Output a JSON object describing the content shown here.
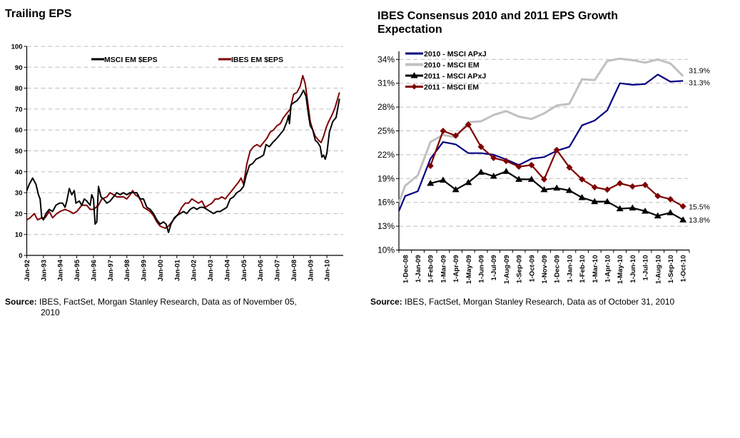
{
  "left": {
    "title": "Trailing EPS",
    "source_bold": "Source:",
    "source_text": " IBES, FactSet, Morgan Stanley Research, Data as of November 05,",
    "source_cont": "2010"
  },
  "right": {
    "title": "IBES Consensus 2010 and 2011 EPS Growth Expectation",
    "source_bold": "Source:",
    "source_text": " IBES, FactSet, Morgan Stanley Research, Data as of October 31, 2010"
  },
  "chart_data": [
    {
      "type": "line",
      "title": "Trailing EPS",
      "xlabel": "",
      "ylabel": "",
      "ylim": [
        0,
        100
      ],
      "yticks": [
        0,
        10,
        20,
        30,
        40,
        50,
        60,
        70,
        80,
        90,
        100
      ],
      "xlim": [
        1992.0,
        2010.85
      ],
      "xtick_labels": [
        "Jan-92",
        "Jan-93",
        "Jan-94",
        "Jan-95",
        "Jan-96",
        "Jan-97",
        "Jan-98",
        "Jan-99",
        "Jan-00",
        "Jan-01",
        "Jan-02",
        "Jan-03",
        "Jan-04",
        "Jan-05",
        "Jan-06",
        "Jan-07",
        "Jan-08",
        "Jan-09",
        "Jan-10"
      ],
      "xtick_values": [
        1992,
        1993,
        1994,
        1995,
        1996,
        1997,
        1998,
        1999,
        2000,
        2001,
        2002,
        2003,
        2004,
        2005,
        2006,
        2007,
        2008,
        2009,
        2010
      ],
      "grid": "horizontal dashed",
      "legend": "top",
      "series": [
        {
          "name": "MSCI EM $EPS",
          "color": "#000000",
          "points": [
            [
              1992.0,
              31
            ],
            [
              1992.15,
              34
            ],
            [
              1992.35,
              37
            ],
            [
              1992.55,
              34
            ],
            [
              1992.7,
              29
            ],
            [
              1992.8,
              27
            ],
            [
              1992.9,
              18
            ],
            [
              1993.0,
              17
            ],
            [
              1993.15,
              20
            ],
            [
              1993.35,
              22
            ],
            [
              1993.55,
              21
            ],
            [
              1993.75,
              24
            ],
            [
              1993.95,
              25
            ],
            [
              1994.15,
              25
            ],
            [
              1994.3,
              23
            ],
            [
              1994.4,
              26
            ],
            [
              1994.55,
              32
            ],
            [
              1994.7,
              29
            ],
            [
              1994.85,
              31
            ],
            [
              1994.95,
              25
            ],
            [
              1995.15,
              26
            ],
            [
              1995.3,
              24
            ],
            [
              1995.45,
              27
            ],
            [
              1995.6,
              26
            ],
            [
              1995.8,
              24
            ],
            [
              1995.9,
              29
            ],
            [
              1996.0,
              27
            ],
            [
              1996.1,
              15
            ],
            [
              1996.2,
              16
            ],
            [
              1996.3,
              33
            ],
            [
              1996.45,
              28
            ],
            [
              1996.6,
              27
            ],
            [
              1996.8,
              25
            ],
            [
              1997.0,
              26
            ],
            [
              1997.2,
              28
            ],
            [
              1997.4,
              30
            ],
            [
              1997.6,
              29
            ],
            [
              1997.8,
              30
            ],
            [
              1998.0,
              29
            ],
            [
              1998.2,
              30
            ],
            [
              1998.4,
              30
            ],
            [
              1998.6,
              30
            ],
            [
              1998.8,
              27
            ],
            [
              1999.0,
              27
            ],
            [
              1999.2,
              23
            ],
            [
              1999.4,
              22
            ],
            [
              1999.6,
              20
            ],
            [
              1999.8,
              17
            ],
            [
              2000.0,
              15
            ],
            [
              2000.2,
              16
            ],
            [
              2000.35,
              15
            ],
            [
              2000.5,
              11
            ],
            [
              2000.65,
              15
            ],
            [
              2000.85,
              18
            ],
            [
              2001.0,
              19
            ],
            [
              2001.2,
              20
            ],
            [
              2001.4,
              21
            ],
            [
              2001.6,
              20
            ],
            [
              2001.8,
              22
            ],
            [
              2002.0,
              23
            ],
            [
              2002.2,
              22
            ],
            [
              2002.4,
              23
            ],
            [
              2002.6,
              23
            ],
            [
              2002.8,
              22
            ],
            [
              2003.0,
              21
            ],
            [
              2003.2,
              20
            ],
            [
              2003.4,
              21
            ],
            [
              2003.6,
              21
            ],
            [
              2003.8,
              22
            ],
            [
              2004.0,
              23
            ],
            [
              2004.2,
              27
            ],
            [
              2004.4,
              28
            ],
            [
              2004.6,
              30
            ],
            [
              2004.8,
              31
            ],
            [
              2005.0,
              33
            ],
            [
              2005.15,
              38
            ],
            [
              2005.35,
              43
            ],
            [
              2005.55,
              44
            ],
            [
              2005.75,
              46
            ],
            [
              2006.0,
              47
            ],
            [
              2006.2,
              48
            ],
            [
              2006.35,
              53
            ],
            [
              2006.55,
              52
            ],
            [
              2006.75,
              54
            ],
            [
              2007.0,
              56
            ],
            [
              2007.2,
              58
            ],
            [
              2007.4,
              60
            ],
            [
              2007.6,
              64
            ],
            [
              2007.7,
              67
            ],
            [
              2007.75,
              63
            ],
            [
              2007.85,
              72
            ],
            [
              2008.0,
              73
            ],
            [
              2008.2,
              74
            ],
            [
              2008.4,
              76
            ],
            [
              2008.6,
              79
            ],
            [
              2008.75,
              76
            ],
            [
              2008.9,
              67
            ],
            [
              2009.0,
              62
            ],
            [
              2009.15,
              60
            ],
            [
              2009.3,
              55
            ],
            [
              2009.45,
              54
            ],
            [
              2009.6,
              52
            ],
            [
              2009.7,
              47
            ],
            [
              2009.8,
              48
            ],
            [
              2009.9,
              46
            ],
            [
              2010.0,
              49
            ],
            [
              2010.15,
              59
            ],
            [
              2010.35,
              64
            ],
            [
              2010.55,
              66
            ],
            [
              2010.75,
              75
            ]
          ]
        },
        {
          "name": "IBES EM $EPS",
          "color": "#7f0000",
          "points": [
            [
              1992.0,
              17
            ],
            [
              1992.2,
              18
            ],
            [
              1992.45,
              20
            ],
            [
              1992.65,
              17
            ],
            [
              1992.9,
              18
            ],
            [
              1993.1,
              18
            ],
            [
              1993.35,
              21
            ],
            [
              1993.55,
              18
            ],
            [
              1993.8,
              20
            ],
            [
              1994.0,
              21
            ],
            [
              1994.3,
              22
            ],
            [
              1994.6,
              21
            ],
            [
              1994.8,
              20
            ],
            [
              1995.0,
              21
            ],
            [
              1995.3,
              24
            ],
            [
              1995.6,
              24
            ],
            [
              1995.8,
              22
            ],
            [
              1996.0,
              22
            ],
            [
              1996.3,
              24
            ],
            [
              1996.5,
              27
            ],
            [
              1996.8,
              28
            ],
            [
              1997.0,
              30
            ],
            [
              1997.2,
              29
            ],
            [
              1997.4,
              28
            ],
            [
              1997.6,
              28
            ],
            [
              1997.8,
              28
            ],
            [
              1998.0,
              27
            ],
            [
              1998.2,
              29
            ],
            [
              1998.35,
              31
            ],
            [
              1998.5,
              29
            ],
            [
              1998.7,
              28
            ],
            [
              1998.85,
              26
            ],
            [
              1999.0,
              23
            ],
            [
              1999.2,
              22
            ],
            [
              1999.4,
              21
            ],
            [
              1999.6,
              19
            ],
            [
              1999.8,
              16
            ],
            [
              2000.0,
              14
            ],
            [
              2000.3,
              13
            ],
            [
              2000.5,
              14
            ],
            [
              2000.7,
              16
            ],
            [
              2000.9,
              18
            ],
            [
              2001.1,
              20
            ],
            [
              2001.3,
              23
            ],
            [
              2001.5,
              25
            ],
            [
              2001.7,
              25
            ],
            [
              2001.9,
              27
            ],
            [
              2002.1,
              26
            ],
            [
              2002.3,
              25
            ],
            [
              2002.5,
              26
            ],
            [
              2002.7,
              23
            ],
            [
              2002.9,
              24
            ],
            [
              2003.1,
              25
            ],
            [
              2003.3,
              27
            ],
            [
              2003.5,
              27
            ],
            [
              2003.7,
              28
            ],
            [
              2003.9,
              27
            ],
            [
              2004.1,
              29
            ],
            [
              2004.3,
              31
            ],
            [
              2004.5,
              33
            ],
            [
              2004.7,
              35
            ],
            [
              2004.85,
              37
            ],
            [
              2005.0,
              34
            ],
            [
              2005.2,
              44
            ],
            [
              2005.4,
              50
            ],
            [
              2005.6,
              52
            ],
            [
              2005.8,
              53
            ],
            [
              2006.0,
              52
            ],
            [
              2006.2,
              54
            ],
            [
              2006.4,
              56
            ],
            [
              2006.6,
              59
            ],
            [
              2006.8,
              60
            ],
            [
              2007.0,
              62
            ],
            [
              2007.2,
              63
            ],
            [
              2007.4,
              66
            ],
            [
              2007.6,
              68
            ],
            [
              2007.8,
              70
            ],
            [
              2008.0,
              77
            ],
            [
              2008.2,
              78
            ],
            [
              2008.4,
              81
            ],
            [
              2008.55,
              86
            ],
            [
              2008.7,
              82
            ],
            [
              2008.85,
              73
            ],
            [
              2009.0,
              64
            ],
            [
              2009.15,
              60
            ],
            [
              2009.3,
              57
            ],
            [
              2009.5,
              55
            ],
            [
              2009.65,
              54
            ],
            [
              2009.8,
              57
            ],
            [
              2009.95,
              61
            ],
            [
              2010.1,
              64
            ],
            [
              2010.3,
              67
            ],
            [
              2010.5,
              71
            ],
            [
              2010.75,
              78
            ]
          ]
        }
      ]
    },
    {
      "type": "line",
      "title": "IBES Consensus 2010 and 2011 EPS Growth Expectation",
      "xlabel": "",
      "ylabel": "",
      "ylim": [
        10,
        34
      ],
      "yticks": [
        10,
        13,
        16,
        19,
        22,
        25,
        28,
        31,
        34
      ],
      "ytick_labels": [
        "10%",
        "13%",
        "16%",
        "19%",
        "22%",
        "25%",
        "28%",
        "31%",
        "34%"
      ],
      "categories": [
        "1-Dec-08",
        "1-Jan-09",
        "1-Feb-09",
        "1-Mar-09",
        "1-Apr-09",
        "1-May-09",
        "1-Jun-09",
        "1-Jul-09",
        "1-Aug-09",
        "1-Sep-09",
        "1-Oct-09",
        "1-Nov-09",
        "1-Dec-09",
        "1-Jan-10",
        "1-Feb-10",
        "1-Mar-10",
        "1-Apr-10",
        "1-May-10",
        "1-Jun-10",
        "1-Jul-10",
        "1-Aug-10",
        "1-Sep-10",
        "1-Oct-10"
      ],
      "grid": "horizontal dashed",
      "legend": "top-left",
      "series": [
        {
          "name": "2010 - MSCI APxJ",
          "color": "#000080",
          "marker": "none",
          "values": [
            16.8,
            17.4,
            21.5,
            23.6,
            23.3,
            22.2,
            22.2,
            22.0,
            21.4,
            20.7,
            21.5,
            21.7,
            22.5,
            23.0,
            25.7,
            26.3,
            27.6,
            31.0,
            30.8,
            30.9,
            32.1,
            31.2,
            31.3
          ],
          "end_label": "31.3%"
        },
        {
          "name": "2010 - MSCI EM",
          "color": "#c0c0c0",
          "marker": "none",
          "values": [
            18.1,
            19.4,
            23.6,
            24.5,
            24.2,
            26.1,
            26.2,
            27.0,
            27.5,
            26.8,
            26.5,
            27.2,
            28.2,
            28.4,
            31.5,
            31.4,
            33.8,
            34.1,
            33.9,
            33.6,
            34.0,
            33.5,
            31.9
          ],
          "end_label": "31.9%"
        },
        {
          "name": "2011 - MSCI APxJ",
          "color": "#000000",
          "marker": "triangle",
          "values": [
            null,
            null,
            18.4,
            18.8,
            17.6,
            18.5,
            19.8,
            19.3,
            19.9,
            18.9,
            18.9,
            17.6,
            17.8,
            17.5,
            16.6,
            16.1,
            16.1,
            15.2,
            15.3,
            14.9,
            14.3,
            14.7,
            13.8
          ],
          "end_label": "13.8%"
        },
        {
          "name": "2011 - MSCI EM",
          "color": "#7f0000",
          "marker": "diamond",
          "values": [
            null,
            null,
            20.6,
            25.0,
            24.4,
            25.8,
            23.0,
            21.6,
            21.2,
            20.5,
            20.7,
            18.9,
            22.6,
            20.4,
            18.9,
            17.9,
            17.6,
            18.4,
            18.0,
            18.2,
            16.8,
            16.4,
            15.5
          ],
          "end_label": "15.5%"
        }
      ]
    }
  ]
}
